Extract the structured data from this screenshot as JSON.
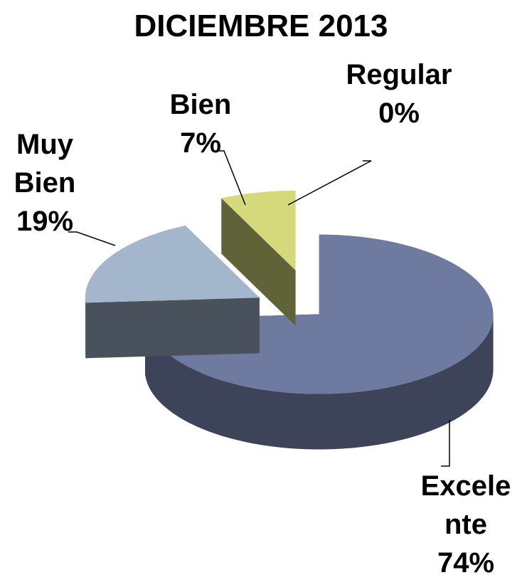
{
  "chart_data": {
    "type": "pie",
    "title": "DICIEMBRE 2013",
    "categories": [
      "Excelente",
      "Muy Bien",
      "Bien",
      "Regular"
    ],
    "values": [
      74,
      19,
      7,
      0
    ],
    "value_labels": [
      "74%",
      "19%",
      "7%",
      "0%"
    ],
    "colors": [
      "#6e7aa0",
      "#a3b6cc",
      "#d5d97c",
      "#c0504d"
    ]
  }
}
